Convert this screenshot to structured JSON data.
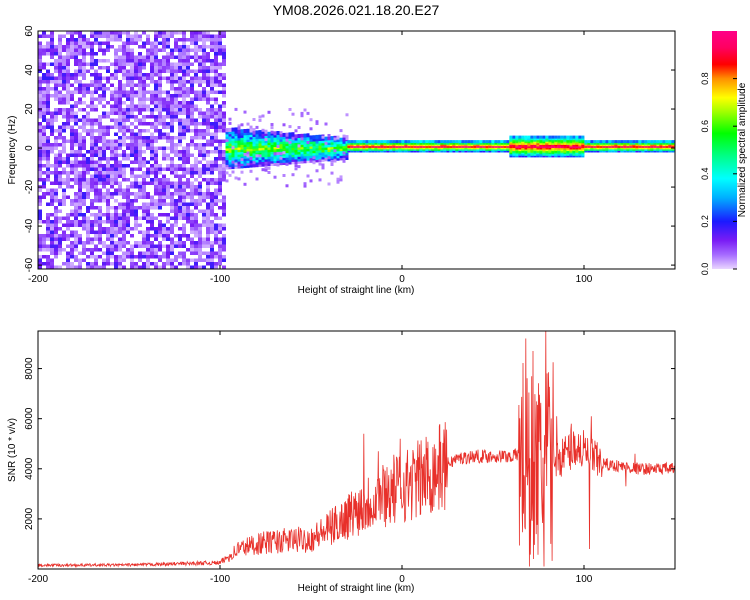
{
  "figure_title": "YM08.2026.021.18.20.E27",
  "chart_data": [
    {
      "type": "heatmap",
      "xlabel": "Height of straight line (km)",
      "ylabel": "Frequency (Hz)",
      "xlim": [
        -200,
        150
      ],
      "ylim": [
        -62,
        60
      ],
      "xticks": [
        -200,
        -100,
        0,
        100
      ],
      "yticks": [
        -60,
        -40,
        -20,
        0,
        20,
        40,
        60
      ],
      "grid": false,
      "colorbar": {
        "label": "Normalized spectral amplitude",
        "range": [
          0,
          1
        ],
        "ticks": [
          0.0,
          0.2,
          0.4,
          0.6,
          0.8
        ],
        "tick_labels": [
          "0.0",
          "0.2",
          "0.4",
          "0.6",
          "0.8"
        ],
        "colormap": "hsv-reversed (violet-blue-cyan-green-yellow-red-magenta)"
      },
      "regions": [
        {
          "x_range": [
            -200,
            -97
          ],
          "description": "broadband noise across all frequencies",
          "amplitude_range": [
            0.0,
            0.2
          ]
        },
        {
          "x_range": [
            -97,
            -30
          ],
          "description": "signal band near 0 Hz, spread about +/-10 Hz",
          "center_hz": 0,
          "amplitude_range": [
            0.1,
            0.6
          ]
        },
        {
          "x_range": [
            -30,
            150
          ],
          "description": "narrow strong line near 0-2 Hz",
          "center_hz": 1,
          "amplitude_range": [
            0.5,
            1.0
          ]
        }
      ]
    },
    {
      "type": "line",
      "xlabel": "Height of straight line (km)",
      "ylabel": "SNR (10 * v/v)",
      "xlim": [
        -200,
        150
      ],
      "ylim": [
        0,
        9500
      ],
      "xticks": [
        -200,
        -100,
        0,
        100
      ],
      "yticks": [
        2000,
        4000,
        6000,
        8000
      ],
      "grid": false,
      "series": [
        {
          "name": "SNR",
          "color": "#e8302a",
          "x": [
            -200,
            -150,
            -100,
            -95,
            -90,
            -80,
            -70,
            -60,
            -50,
            -40,
            -30,
            -20,
            -10,
            0,
            10,
            20,
            30,
            40,
            50,
            60,
            65,
            70,
            75,
            80,
            85,
            90,
            95,
            100,
            105,
            110,
            120,
            130,
            140,
            150
          ],
          "y": [
            150,
            160,
            250,
            500,
            800,
            1000,
            1100,
            1150,
            1200,
            1600,
            2100,
            2600,
            3000,
            3300,
            3600,
            4000,
            4400,
            4500,
            4500,
            4500,
            4600,
            4000,
            4000,
            4200,
            4300,
            4600,
            4900,
            4700,
            4400,
            4200,
            4100,
            4000,
            4000,
            4000
          ],
          "spikes": [
            {
              "x": 68,
              "y": 9200
            },
            {
              "x": 72,
              "y": 8700
            },
            {
              "x": 79,
              "y": 9500
            },
            {
              "x": 85,
              "y": 6100
            },
            {
              "x": 93,
              "y": 5800
            },
            {
              "x": 104,
              "y": 6100
            },
            {
              "x": 103,
              "y": 800
            },
            {
              "x": 70,
              "y": 100
            },
            {
              "x": 78,
              "y": 100
            },
            {
              "x": -21,
              "y": 5400
            },
            {
              "x": -1,
              "y": 5200
            },
            {
              "x": -13,
              "y": 4700
            },
            {
              "x": 123,
              "y": 3300
            },
            {
              "x": 128,
              "y": 4600
            }
          ]
        }
      ]
    }
  ]
}
